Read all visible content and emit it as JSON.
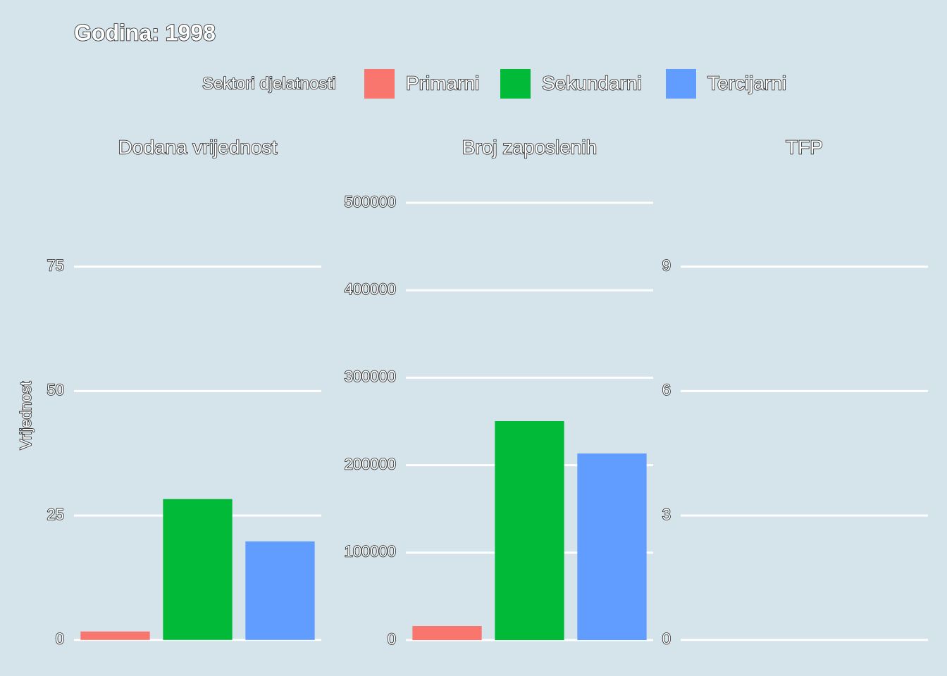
{
  "title": "Godina: 1998",
  "y_label": "Vrijednost",
  "legend": {
    "title": "Sektori djelatnosti",
    "items": [
      {
        "name": "Primarni",
        "color": "#f8766d"
      },
      {
        "name": "Sekundarni",
        "color": "#00ba38"
      },
      {
        "name": "Tercijarni",
        "color": "#619cff"
      }
    ]
  },
  "chart_data": [
    {
      "type": "bar",
      "title": "Dodana vrijednost",
      "values": [
        1.7,
        28.3,
        19.8
      ],
      "ylim": [
        -3,
        92.5
      ],
      "yticks": [
        0,
        25,
        50,
        75
      ],
      "grid": true
    },
    {
      "type": "bar",
      "title": "Broj zaposlenih",
      "values": [
        16100,
        250400,
        213400
      ],
      "ylim": [
        -16900,
        526600
      ],
      "yticks": [
        0,
        100000,
        200000,
        300000,
        400000,
        500000
      ],
      "grid": true
    },
    {
      "type": "bar",
      "title": "TFP",
      "values": [
        null,
        null,
        null
      ],
      "ylim": [
        -0.36,
        11.1
      ],
      "yticks": [
        0,
        3,
        6,
        9
      ],
      "grid": true
    }
  ]
}
